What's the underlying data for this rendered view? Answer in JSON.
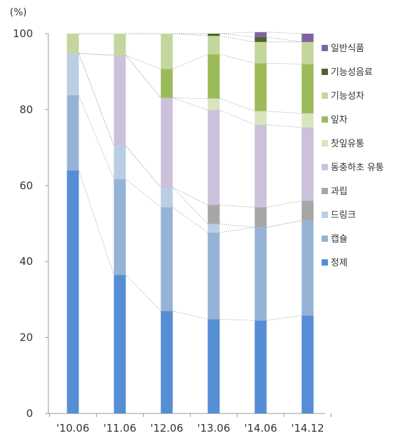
{
  "chart_data": {
    "type": "bar",
    "stacked": true,
    "unit_label": "(%)",
    "categories": [
      "'10.06",
      "'11.06",
      "'12.06",
      "'13.06",
      "'14.06",
      "'14.12"
    ],
    "ylim": [
      0,
      100
    ],
    "y_ticks": [
      0,
      20,
      40,
      60,
      80,
      100
    ],
    "grid": false,
    "legend_position": "right",
    "connector_lines": true,
    "series": [
      {
        "name": "정제",
        "color": "#558ED5",
        "values": [
          64,
          36.5,
          27,
          24.8,
          24.5,
          25.8
        ]
      },
      {
        "name": "캡슐",
        "color": "#95B3D7",
        "values": [
          19.8,
          25.2,
          27.3,
          22.8,
          24.5,
          25
        ]
      },
      {
        "name": "드링크",
        "color": "#B9CDE5",
        "values": [
          11,
          8.8,
          5.2,
          2.3,
          0,
          0
        ]
      },
      {
        "name": "과립",
        "color": "#A6A6A6",
        "values": [
          0,
          0,
          0,
          5,
          5.3,
          5.2
        ]
      },
      {
        "name": "동충하초 유통",
        "color": "#CCC1DA",
        "values": [
          0,
          23.8,
          23.6,
          25,
          21.7,
          19.3
        ]
      },
      {
        "name": "찻잎유통",
        "color": "#D7E4BD",
        "values": [
          0,
          0,
          0,
          3,
          3.6,
          3.7
        ]
      },
      {
        "name": "잎차",
        "color": "#9BBB59",
        "values": [
          0,
          0,
          7.6,
          11.7,
          12.6,
          13
        ]
      },
      {
        "name": "기능성차",
        "color": "#C3D69B",
        "values": [
          5.2,
          5.7,
          9.3,
          4.8,
          5.6,
          5.8
        ]
      },
      {
        "name": "기능성음료",
        "color": "#4F6228",
        "values": [
          0,
          0,
          0,
          0.6,
          1.3,
          0
        ]
      },
      {
        "name": "일반식품",
        "color": "#8064A2",
        "values": [
          0,
          0,
          0,
          0,
          1.3,
          2.2
        ]
      }
    ]
  }
}
